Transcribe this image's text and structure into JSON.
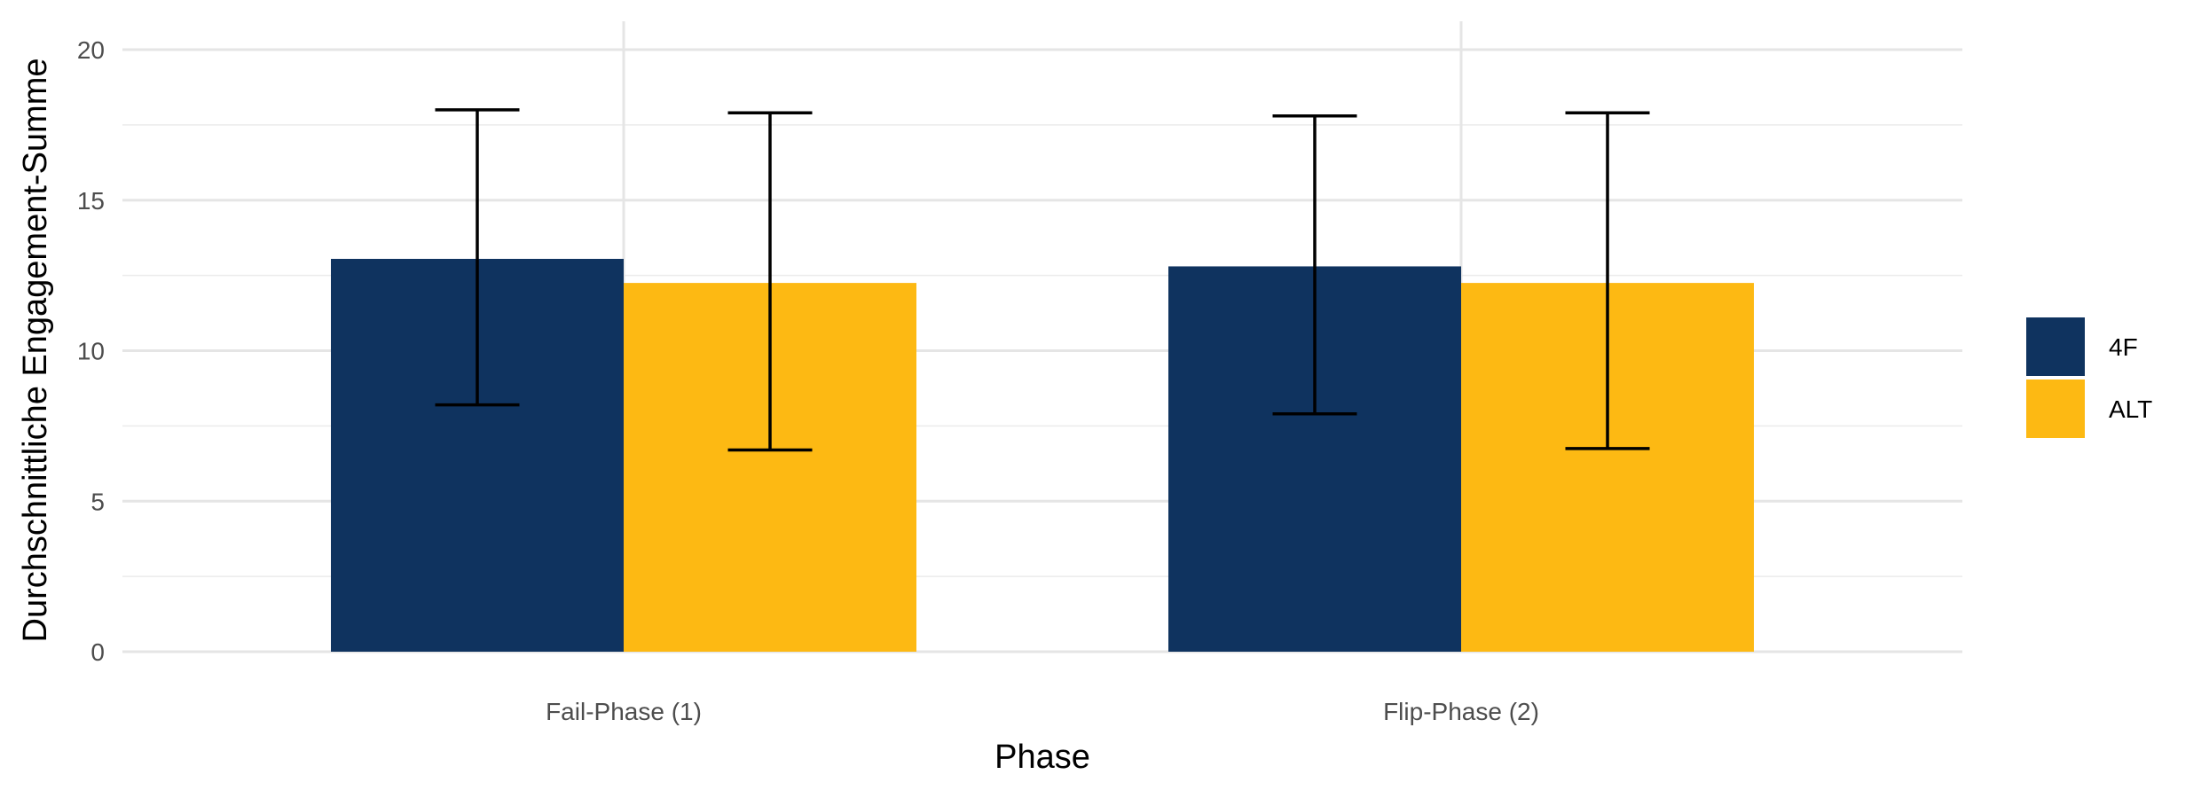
{
  "chart_data": {
    "type": "bar",
    "title": "",
    "xlabel": "Phase",
    "ylabel": "Durchschnittliche Engagement-Summe",
    "ylim": [
      0,
      20.5
    ],
    "yticks": [
      0,
      5,
      10,
      15,
      20
    ],
    "categories": [
      "Fail-Phase (1)",
      "Flip-Phase (2)"
    ],
    "grid": true,
    "legend_position": "right",
    "series": [
      {
        "name": "4F",
        "color": "#0f335f",
        "values": [
          13.05,
          12.8
        ],
        "error_low": [
          8.2,
          7.9
        ],
        "error_high": [
          18.0,
          17.8
        ]
      },
      {
        "name": "ALT",
        "color": "#fdb913",
        "values": [
          12.25,
          12.25
        ],
        "error_low": [
          6.7,
          6.75
        ],
        "error_high": [
          17.9,
          17.9
        ]
      }
    ]
  }
}
